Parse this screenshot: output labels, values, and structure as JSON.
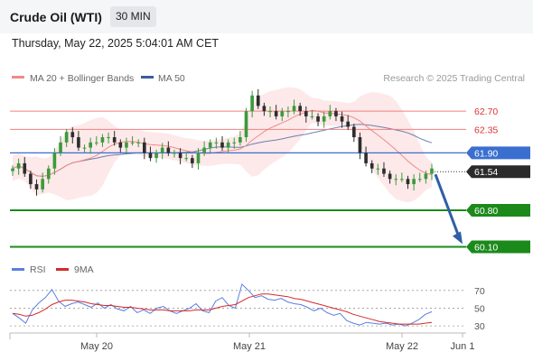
{
  "header": {
    "title": "Crude Oil (WTI)",
    "timeframe": "30 MIN",
    "datetime": "Thursday, May 22, 2025 5:04:01 AM CET"
  },
  "legend": {
    "ma20_label": "MA 20 + Bollinger Bands",
    "ma50_label": "MA 50",
    "copyright": "Research © 2025 Trading Central",
    "rsi_label": "RSI",
    "rsi_ma_label": "9MA"
  },
  "colors": {
    "ma20": "#f08a8a",
    "ma50": "#3b5c9e",
    "bollinger_fill": "#fde3e3",
    "candle_up": "#3c9a3c",
    "candle_down": "#2d2d2d",
    "resistance": "#f08080",
    "pivot": "#3a6fd0",
    "support": "#1b8a1b",
    "arrow": "#2e5fa8",
    "rsi": "#5b7fe0",
    "rsi_ma": "#d42a2a"
  },
  "chart_data": [
    {
      "type": "candlestick",
      "title": "Crude Oil (WTI)",
      "timeframe": "30 MIN",
      "x_tick_labels": [
        "May 20",
        "May 21",
        "May 22",
        "Jun 1"
      ],
      "ylim": [
        59.9,
        63.1
      ],
      "levels": [
        {
          "value": 62.7,
          "label": "62.70",
          "kind": "resistance"
        },
        {
          "value": 62.35,
          "label": "62.35",
          "kind": "resistance"
        },
        {
          "value": 61.9,
          "label": "61.90",
          "kind": "pivot"
        },
        {
          "value": 60.8,
          "label": "60.80",
          "kind": "support"
        },
        {
          "value": 60.1,
          "label": "60.10",
          "kind": "support"
        }
      ],
      "last_price": {
        "value": 61.54,
        "label": "61.54"
      },
      "projection": {
        "from": 61.54,
        "to": 60.1,
        "direction": "down"
      },
      "close_series": [
        61.6,
        61.7,
        61.5,
        61.3,
        61.2,
        61.4,
        61.6,
        61.9,
        62.1,
        62.3,
        62.2,
        62.0,
        62.0,
        62.1,
        62.1,
        62.2,
        62.2,
        62.1,
        62.0,
        62.1,
        62.1,
        62.1,
        61.9,
        61.8,
        61.9,
        62.0,
        61.9,
        61.9,
        61.8,
        61.8,
        61.7,
        61.9,
        62.0,
        62.1,
        62.1,
        62.0,
        62.1,
        62.1,
        62.2,
        62.7,
        63.0,
        62.8,
        62.7,
        62.7,
        62.6,
        62.7,
        62.7,
        62.8,
        62.7,
        62.6,
        62.6,
        62.5,
        62.6,
        62.7,
        62.6,
        62.5,
        62.4,
        62.2,
        61.9,
        61.7,
        61.6,
        61.6,
        61.5,
        61.4,
        61.4,
        61.4,
        61.3,
        61.4,
        61.4,
        61.5,
        61.6
      ]
    },
    {
      "type": "line",
      "title": "RSI",
      "series": [
        {
          "name": "RSI",
          "values": [
            44,
            39,
            33,
            48,
            56,
            62,
            71,
            58,
            52,
            55,
            57,
            54,
            51,
            56,
            50,
            54,
            49,
            47,
            52,
            45,
            48,
            44,
            50,
            52,
            47,
            44,
            47,
            50,
            55,
            47,
            45,
            58,
            62,
            53,
            50,
            77,
            70,
            62,
            64,
            60,
            59,
            61,
            57,
            55,
            54,
            51,
            47,
            50,
            45,
            42,
            44,
            36,
            33,
            31,
            34,
            33,
            32,
            33,
            31,
            32,
            30,
            33,
            37,
            43,
            46
          ]
        },
        {
          "name": "9MA",
          "values": [
            44,
            43,
            41,
            42,
            45,
            49,
            54,
            57,
            59,
            59,
            58,
            57,
            55,
            54,
            53,
            53,
            52,
            51,
            51,
            50,
            49,
            48,
            48,
            48,
            47,
            47,
            47,
            47,
            48,
            48,
            48,
            50,
            52,
            53,
            54,
            58,
            62,
            64,
            66,
            66,
            65,
            64,
            63,
            61,
            60,
            58,
            56,
            54,
            52,
            50,
            48,
            46,
            43,
            41,
            39,
            37,
            35,
            34,
            33,
            32,
            32,
            32,
            32,
            33,
            34
          ]
        }
      ],
      "ylim": [
        25,
        80
      ],
      "y_tick_labels": [
        "70",
        "50",
        "30"
      ]
    }
  ]
}
